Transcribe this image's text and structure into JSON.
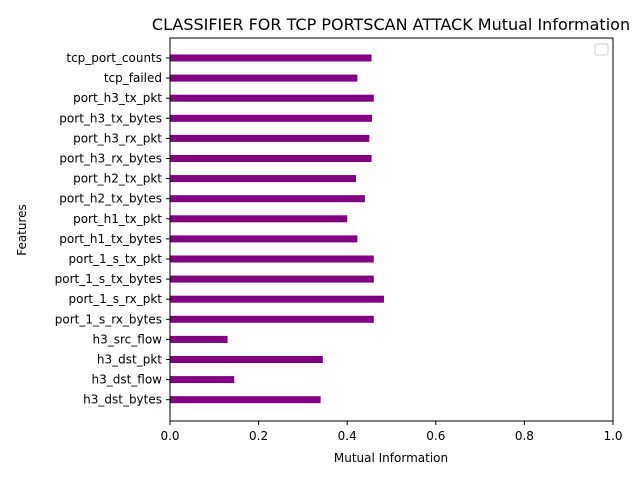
{
  "chart_data": {
    "type": "bar",
    "orientation": "horizontal",
    "title": "CLASSIFIER FOR TCP PORTSCAN ATTACK Mutual Information",
    "xlabel": "Mutual Information",
    "ylabel": "Features",
    "xlim": [
      0,
      1.0
    ],
    "xticks": [
      "0.0",
      "0.2",
      "0.4",
      "0.6",
      "0.8",
      "1.0"
    ],
    "xtick_values": [
      0,
      0.2,
      0.4,
      0.6,
      0.8,
      1.0
    ],
    "bar_color": "#800080",
    "legend": "top-right",
    "grid": false,
    "categories": [
      "tcp_port_counts",
      "tcp_failed",
      "port_h3_tx_pkt",
      "port_h3_tx_bytes",
      "port_h3_rx_pkt",
      "port_h3_rx_bytes",
      "port_h2_tx_pkt",
      "port_h2_tx_bytes",
      "port_h1_tx_pkt",
      "port_h1_tx_bytes",
      "port_1_s_tx_pkt",
      "port_1_s_tx_bytes",
      "port_1_s_rx_pkt",
      "port_1_s_rx_bytes",
      "h3_src_flow",
      "h3_dst_pkt",
      "h3_dst_flow",
      "h3_dst_bytes"
    ],
    "values": [
      0.455,
      0.423,
      0.46,
      0.456,
      0.45,
      0.455,
      0.42,
      0.44,
      0.4,
      0.423,
      0.46,
      0.46,
      0.483,
      0.46,
      0.13,
      0.345,
      0.145,
      0.34
    ]
  }
}
